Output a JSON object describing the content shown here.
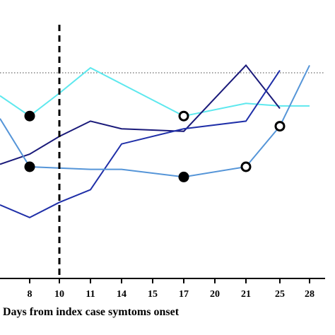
{
  "chart_data": {
    "type": "line",
    "xlabel": "Days from index case symtoms onset",
    "x_ticks": [
      "8",
      "10",
      "11",
      "14",
      "15",
      "17",
      "20",
      "21",
      "25",
      "28"
    ],
    "reference_line_x": "10",
    "threshold_line": "dotted horizontal reference line",
    "grid": false,
    "series": [
      {
        "color": "#5ee8ee",
        "points": [
          [
            "6",
            0.72
          ],
          [
            "8",
            0.64
          ],
          [
            "10",
            0.73
          ],
          [
            "11",
            0.83
          ],
          [
            "17",
            0.64
          ],
          [
            "21",
            0.69
          ],
          [
            "25",
            0.68
          ],
          [
            "28",
            0.68
          ]
        ]
      },
      {
        "color": "#1a1a7a",
        "points": [
          [
            "6",
            0.45
          ],
          [
            "8",
            0.49
          ],
          [
            "10",
            0.56
          ],
          [
            "11",
            0.62
          ],
          [
            "14",
            0.59
          ],
          [
            "17",
            0.58
          ],
          [
            "21",
            0.84
          ],
          [
            "25",
            0.67
          ]
        ]
      },
      {
        "color": "#1f2fa8",
        "points": [
          [
            "6",
            0.29
          ],
          [
            "8",
            0.24
          ],
          [
            "10",
            0.3
          ],
          [
            "11",
            0.35
          ],
          [
            "14",
            0.53
          ],
          [
            "17",
            0.59
          ],
          [
            "21",
            0.62
          ],
          [
            "25",
            0.82
          ]
        ]
      },
      {
        "color": "#5595d8",
        "points": [
          [
            "6",
            0.63
          ],
          [
            "8",
            0.44
          ],
          [
            "11",
            0.43
          ],
          [
            "14",
            0.43
          ],
          [
            "17",
            0.4
          ],
          [
            "21",
            0.44
          ],
          [
            "25",
            0.6
          ],
          [
            "28",
            0.84
          ]
        ]
      }
    ],
    "markers": [
      {
        "x": "8",
        "y": 0.64,
        "fill": "filled"
      },
      {
        "x": "8",
        "y": 0.44,
        "fill": "filled"
      },
      {
        "x": "17",
        "y": 0.4,
        "fill": "filled"
      },
      {
        "x": "17",
        "y": 0.64,
        "fill": "open"
      },
      {
        "x": "21",
        "y": 0.44,
        "fill": "open"
      },
      {
        "x": "25",
        "y": 0.6,
        "fill": "open"
      }
    ]
  }
}
